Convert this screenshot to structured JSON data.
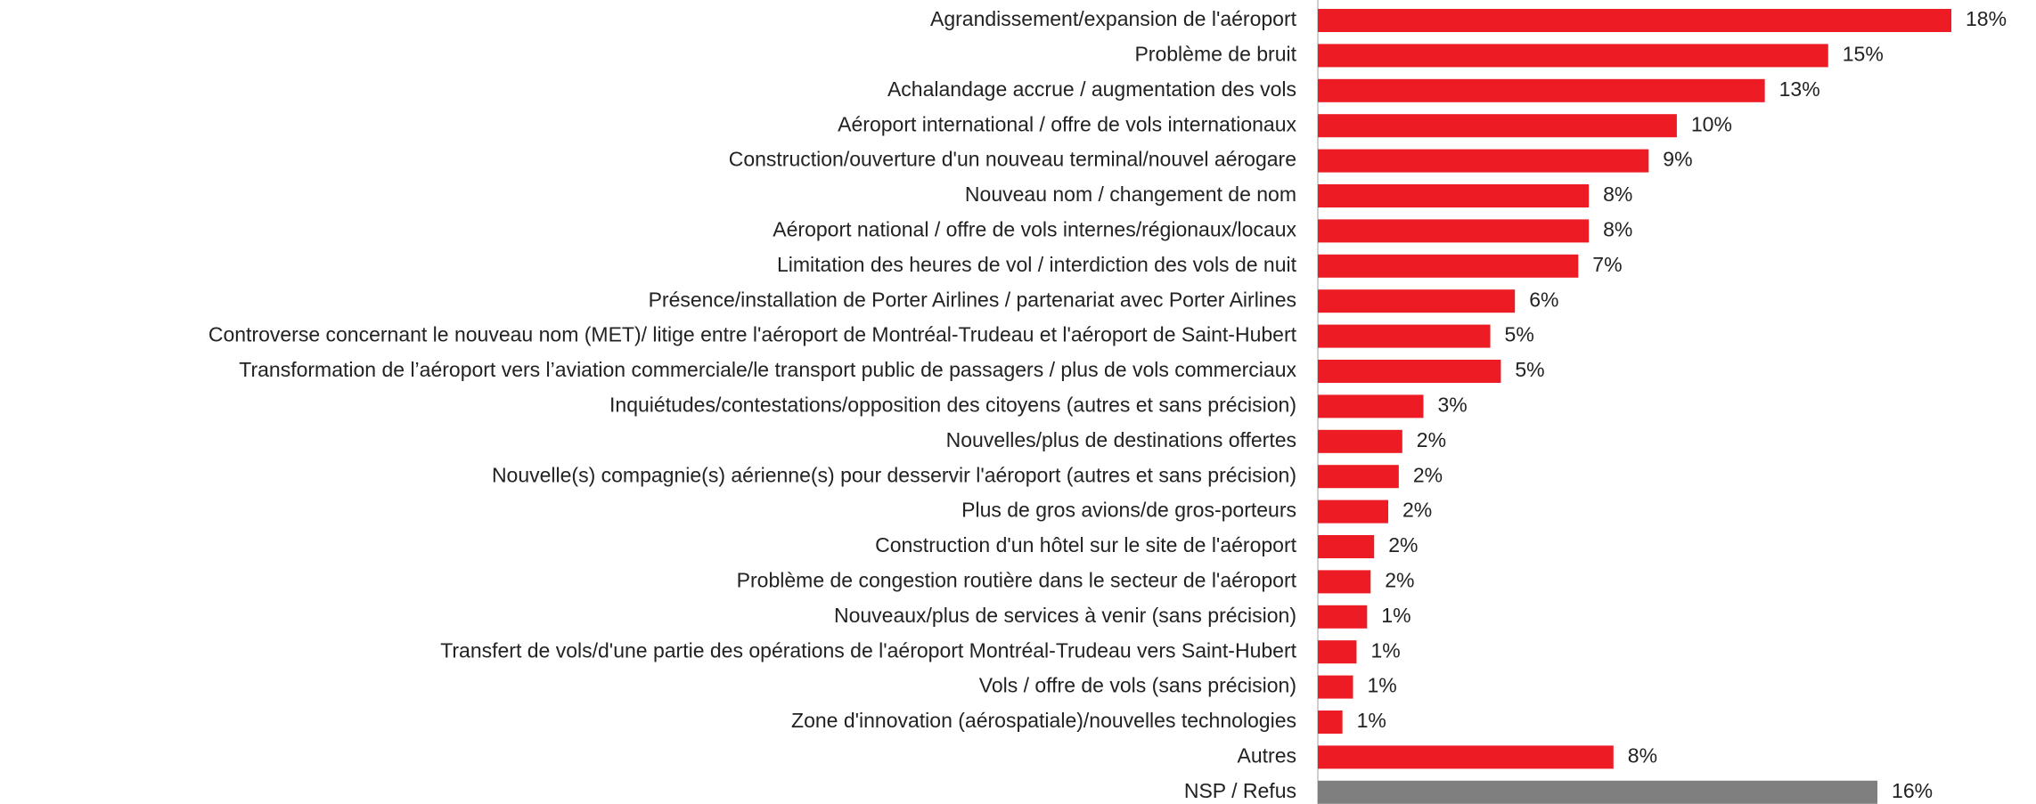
{
  "chart_data": {
    "type": "barh",
    "categories": [
      "Agrandissement/expansion de l'aéroport",
      "Problème de bruit",
      "Achalandage accrue / augmentation des vols",
      "Aéroport international / offre de vols internationaux",
      "Construction/ouverture d'un nouveau terminal/nouvel aérogare",
      "Nouveau nom / changement de nom",
      "Aéroport national / offre de vols internes/régionaux/locaux",
      "Limitation des heures de vol / interdiction des vols de nuit",
      "Présence/installation de Porter Airlines / partenariat avec Porter Airlines",
      "Controverse concernant le nouveau nom (MET)/ litige entre l'aéroport de Montréal-Trudeau et l'aéroport de Saint-Hubert",
      "Transformation de l’aéroport vers l’aviation commerciale/le transport public de passagers / plus de vols commerciaux",
      "Inquiétudes/contestations/opposition des citoyens (autres et sans précision)",
      "Nouvelles/plus de destinations offertes",
      "Nouvelle(s) compagnie(s) aérienne(s) pour desservir l'aéroport (autres et sans précision)",
      "Plus de gros avions/de gros-porteurs",
      "Construction d'un hôtel sur le site de l'aéroport",
      "Problème de congestion routière dans le secteur de l'aéroport",
      "Nouveaux/plus de services à venir (sans précision)",
      "Transfert de vols/d'une partie des opérations de l'aéroport Montréal-Trudeau vers Saint-Hubert",
      "Vols / offre de vols (sans précision)",
      "Zone d'innovation (aérospatiale)/nouvelles technologies",
      "Autres",
      "NSP / Refus"
    ],
    "values": [
      18.0,
      14.5,
      12.7,
      10.2,
      9.4,
      7.7,
      7.7,
      7.4,
      5.6,
      4.9,
      5.2,
      3.0,
      2.4,
      2.3,
      2.0,
      1.6,
      1.5,
      1.4,
      1.1,
      1.0,
      0.7,
      8.4,
      15.9
    ],
    "value_labels": [
      "18%",
      "15%",
      "13%",
      "10%",
      "9%",
      "8%",
      "8%",
      "7%",
      "6%",
      "5%",
      "5%",
      "3%",
      "2%",
      "2%",
      "2%",
      "2%",
      "2%",
      "1%",
      "1%",
      "1%",
      "1%",
      "8%",
      "16%"
    ],
    "colors": [
      "#ed1c24",
      "#ed1c24",
      "#ed1c24",
      "#ed1c24",
      "#ed1c24",
      "#ed1c24",
      "#ed1c24",
      "#ed1c24",
      "#ed1c24",
      "#ed1c24",
      "#ed1c24",
      "#ed1c24",
      "#ed1c24",
      "#ed1c24",
      "#ed1c24",
      "#ed1c24",
      "#ed1c24",
      "#ed1c24",
      "#ed1c24",
      "#ed1c24",
      "#ed1c24",
      "#ed1c24",
      "#7f7f7f"
    ],
    "xlim": [
      0,
      20
    ]
  }
}
